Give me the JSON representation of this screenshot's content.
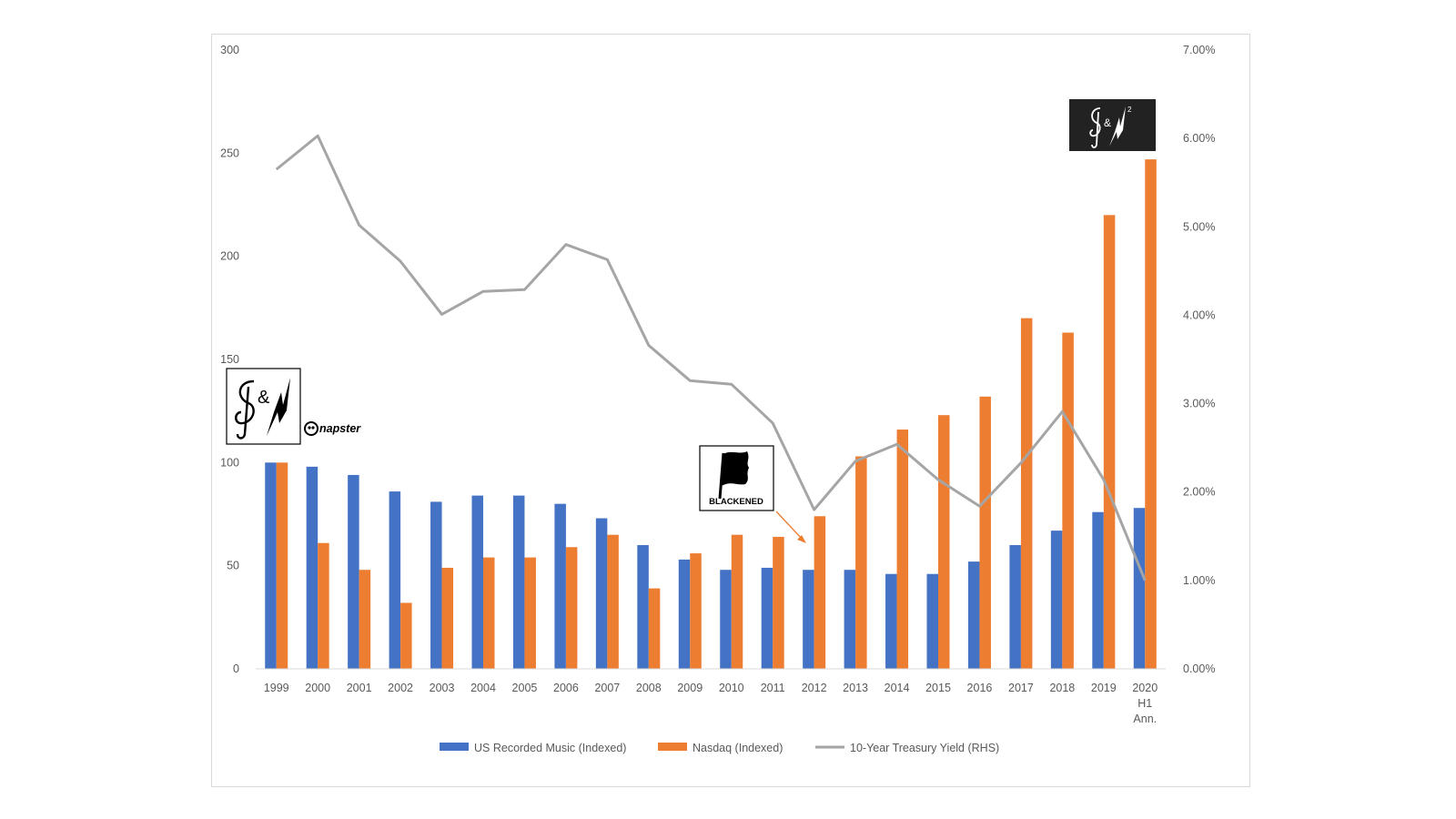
{
  "chart_data": {
    "type": "bar",
    "categories": [
      [
        "1999"
      ],
      [
        "2000"
      ],
      [
        "2001"
      ],
      [
        "2002"
      ],
      [
        "2003"
      ],
      [
        "2004"
      ],
      [
        "2005"
      ],
      [
        "2006"
      ],
      [
        "2007"
      ],
      [
        "2008"
      ],
      [
        "2009"
      ],
      [
        "2010"
      ],
      [
        "2011"
      ],
      [
        "2012"
      ],
      [
        "2013"
      ],
      [
        "2014"
      ],
      [
        "2015"
      ],
      [
        "2016"
      ],
      [
        "2017"
      ],
      [
        "2018"
      ],
      [
        "2019"
      ],
      [
        "2020",
        "H1",
        "Ann."
      ]
    ],
    "ylim_left": [
      0,
      300
    ],
    "yticks_left": [
      "0",
      "50",
      "100",
      "150",
      "200",
      "250",
      "300"
    ],
    "ylim_right": [
      0,
      7
    ],
    "yticks_right": [
      "0.00%",
      "1.00%",
      "2.00%",
      "3.00%",
      "4.00%",
      "5.00%",
      "6.00%",
      "7.00%"
    ],
    "series": [
      {
        "name": "US Recorded Music (Indexed)",
        "type": "bar",
        "axis": "left",
        "color": "#4472c4",
        "values": [
          100,
          98,
          94,
          86,
          81,
          84,
          84,
          80,
          73,
          60,
          53,
          48,
          49,
          48,
          48,
          46,
          46,
          52,
          60,
          67,
          76,
          78
        ]
      },
      {
        "name": "Nasdaq (Indexed)",
        "type": "bar",
        "axis": "left",
        "color": "#ed7d31",
        "values": [
          100,
          61,
          48,
          32,
          49,
          54,
          54,
          59,
          65,
          39,
          56,
          65,
          64,
          74,
          103,
          116,
          123,
          132,
          170,
          163,
          220,
          247
        ]
      },
      {
        "name": "10-Year Treasury Yield (RHS)",
        "type": "line",
        "axis": "right",
        "color": "#a5a5a5",
        "values": [
          5.65,
          6.03,
          5.02,
          4.61,
          4.01,
          4.27,
          4.29,
          4.8,
          4.63,
          3.66,
          3.26,
          3.22,
          2.78,
          1.8,
          2.35,
          2.54,
          2.14,
          1.84,
          2.33,
          2.91,
          2.14,
          1.0
        ]
      }
    ],
    "grid": false,
    "legend_position": "bottom",
    "annotations": [
      {
        "kind": "logo",
        "name": "s-and-m-logo",
        "category": "1999"
      },
      {
        "kind": "logo",
        "name": "napster-logo",
        "category": "1999",
        "text": "napster"
      },
      {
        "kind": "logo",
        "name": "blackened-logo",
        "category": "2012",
        "text": "BLACKENED",
        "arrow_color": "#ed7d31"
      },
      {
        "kind": "logo",
        "name": "s-and-m2-logo",
        "category": "2020 H1 Ann."
      }
    ]
  }
}
